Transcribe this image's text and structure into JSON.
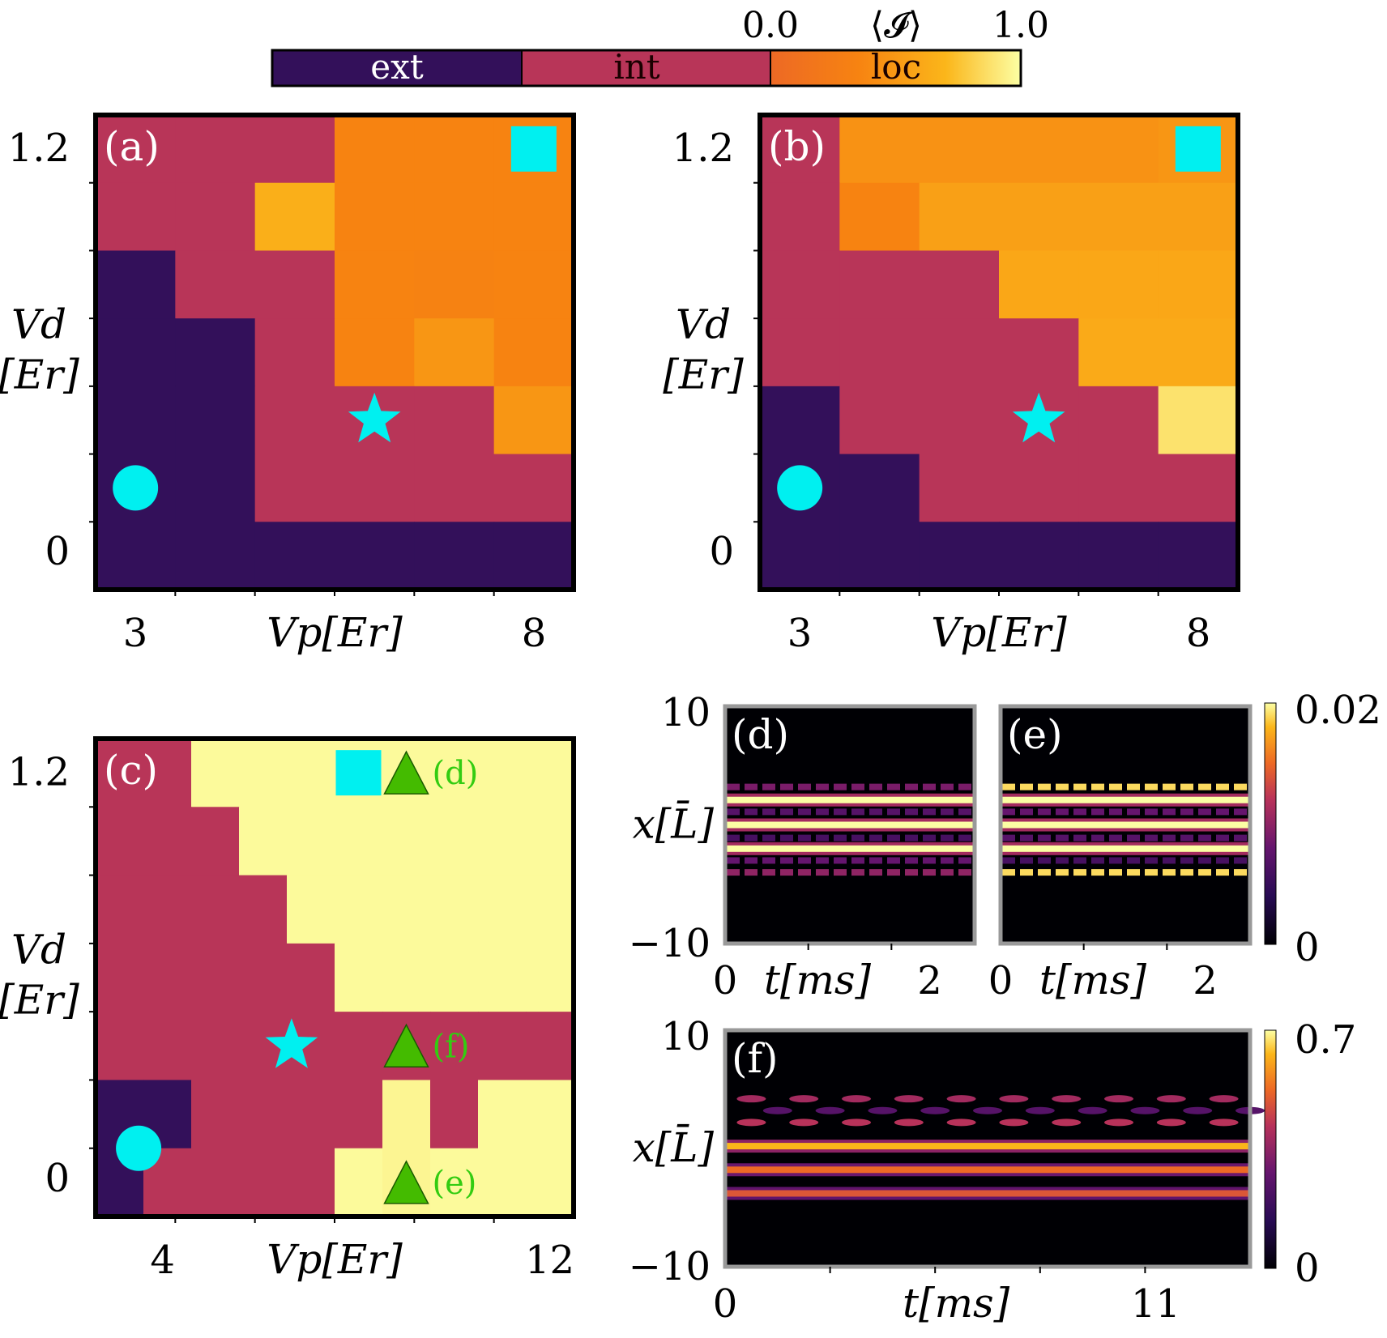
{
  "colorbar_top": {
    "segments": [
      {
        "label": "ext",
        "color": "#33105a",
        "text_color": "#ffffff"
      },
      {
        "label": "int",
        "color": "#b83558",
        "text_color": "#1a0000"
      },
      {
        "label": "loc",
        "color": "#f07f1f",
        "text_color": "#1a0000"
      }
    ],
    "loc_min_label": "0.0",
    "loc_max_label": "1.0",
    "quantity_label": "⟨𝓘⟩"
  },
  "chart_data": [
    {
      "id": "a",
      "type": "heatmap",
      "panel_label": "(a)",
      "xlabel": "V_p[E_r]",
      "ylabel": "V_d [E_r]",
      "xticks": [
        "3",
        "8"
      ],
      "yticks": [
        "0",
        "1.2"
      ],
      "rows_top_to_bottom": [
        [
          "int",
          "int",
          "int",
          "loc:0.35",
          "loc:0.35",
          "loc:0.35"
        ],
        [
          "int",
          "int",
          "loc:0.65",
          "loc:0.35",
          "loc:0.35",
          "loc:0.35"
        ],
        [
          "ext",
          "int",
          "int",
          "loc:0.35",
          "loc:0.33",
          "loc:0.35"
        ],
        [
          "ext",
          "ext",
          "int",
          "loc:0.35",
          "loc:0.48",
          "loc:0.35"
        ],
        [
          "ext",
          "ext",
          "int",
          "int",
          "int",
          "loc:0.48"
        ],
        [
          "ext",
          "ext",
          "int",
          "int",
          "int",
          "int"
        ],
        [
          "ext",
          "ext",
          "ext",
          "ext",
          "ext",
          "ext"
        ]
      ],
      "markers": [
        {
          "shape": "square",
          "col": 5,
          "row": 0
        },
        {
          "shape": "star",
          "col": 3,
          "row": 4
        },
        {
          "shape": "circle",
          "col": 0,
          "row": 5
        }
      ]
    },
    {
      "id": "b",
      "type": "heatmap",
      "panel_label": "(b)",
      "xlabel": "V_p[E_r]",
      "ylabel": "V_d [E_r]",
      "xticks": [
        "3",
        "8"
      ],
      "yticks": [
        "0",
        "1.2"
      ],
      "rows_top_to_bottom": [
        [
          "int",
          "loc:0.45",
          "loc:0.45",
          "loc:0.45",
          "loc:0.45",
          "loc:0.48"
        ],
        [
          "int",
          "loc:0.35",
          "loc:0.55",
          "loc:0.55",
          "loc:0.55",
          "loc:0.55"
        ],
        [
          "int",
          "int",
          "int",
          "loc:0.6",
          "loc:0.6",
          "loc:0.6"
        ],
        [
          "int",
          "int",
          "int",
          "int",
          "loc:0.62",
          "loc:0.62"
        ],
        [
          "ext",
          "int",
          "int",
          "int",
          "int",
          "loc:0.88"
        ],
        [
          "ext",
          "ext",
          "int",
          "int",
          "int",
          "int"
        ],
        [
          "ext",
          "ext",
          "ext",
          "ext",
          "ext",
          "ext"
        ]
      ],
      "markers": [
        {
          "shape": "square",
          "col": 5,
          "row": 0
        },
        {
          "shape": "star",
          "col": 3,
          "row": 4
        },
        {
          "shape": "circle",
          "col": 0,
          "row": 5
        }
      ]
    },
    {
      "id": "c",
      "type": "heatmap",
      "panel_label": "(c)",
      "xlabel": "V_p[E_r]",
      "ylabel": "V_d [E_r]",
      "xticks": [
        "4",
        "12"
      ],
      "yticks": [
        "0",
        "1.2"
      ],
      "rows_top_to_bottom": [
        [
          "int",
          "int",
          "loc:0.98",
          "loc:0.98",
          "loc:0.98",
          "loc:0.98",
          "loc:0.98",
          "loc:0.98",
          "loc:0.98",
          "loc:0.98"
        ],
        [
          "int",
          "int",
          "int",
          "loc:0.98",
          "loc:0.98",
          "loc:0.98",
          "loc:0.98",
          "loc:0.98",
          "loc:0.98",
          "loc:0.98"
        ],
        [
          "int",
          "int",
          "int",
          "int",
          "loc:0.98",
          "loc:0.98",
          "loc:0.98",
          "loc:0.98",
          "loc:0.98",
          "loc:0.98"
        ],
        [
          "int",
          "int",
          "int",
          "int",
          "int",
          "loc:0.98",
          "loc:0.98",
          "loc:0.98",
          "loc:0.98",
          "loc:0.98"
        ],
        [
          "int",
          "int",
          "int",
          "int",
          "int",
          "int",
          "int",
          "int",
          "int",
          "int"
        ],
        [
          "ext",
          "ext",
          "int",
          "int",
          "int",
          "int",
          "loc:0.96",
          "int",
          "loc:0.98",
          "loc:0.98"
        ],
        [
          "ext",
          "int",
          "int",
          "int",
          "int",
          "loc:0.98",
          "loc:0.96",
          "loc:0.98",
          "loc:0.98",
          "loc:0.98"
        ]
      ],
      "markers": [
        {
          "shape": "square",
          "col": 5,
          "row": 0
        },
        {
          "shape": "triangle",
          "col": 6,
          "row": 0,
          "annotation": "(d)"
        },
        {
          "shape": "star",
          "col": 3.6,
          "row": 4
        },
        {
          "shape": "triangle",
          "col": 6,
          "row": 4,
          "annotation": "(f)"
        },
        {
          "shape": "circle",
          "col": 0.4,
          "row": 5.5
        },
        {
          "shape": "triangle",
          "col": 6,
          "row": 6,
          "annotation": "(e)"
        }
      ]
    },
    {
      "id": "d",
      "type": "heatmap",
      "panel_label": "(d)",
      "xlabel": "t[ms]",
      "ylabel": "x[L̄]",
      "xticks": [
        "0",
        "2"
      ],
      "yticks": [
        "10",
        "−10"
      ],
      "bands": [
        {
          "position": 0.34,
          "intensity": 0.45,
          "pattern": "dashed"
        },
        {
          "position": 0.395,
          "intensity": 1.0,
          "pattern": "solid"
        },
        {
          "position": 0.445,
          "intensity": 0.35,
          "pattern": "dashed"
        },
        {
          "position": 0.5,
          "intensity": 1.0,
          "pattern": "solid"
        },
        {
          "position": 0.555,
          "intensity": 0.3,
          "pattern": "dashed"
        },
        {
          "position": 0.6,
          "intensity": 1.0,
          "pattern": "solid"
        },
        {
          "position": 0.65,
          "intensity": 0.4,
          "pattern": "dashed"
        },
        {
          "position": 0.7,
          "intensity": 0.5,
          "pattern": "dashed"
        }
      ]
    },
    {
      "id": "e",
      "type": "heatmap",
      "panel_label": "(e)",
      "xlabel": "t[ms]",
      "xticks": [
        "0",
        "2"
      ],
      "colorbar": {
        "min_label": "0",
        "max_label": "0.02"
      },
      "bands": [
        {
          "position": 0.34,
          "intensity": 0.95,
          "pattern": "dashed"
        },
        {
          "position": 0.395,
          "intensity": 1.0,
          "pattern": "solid"
        },
        {
          "position": 0.445,
          "intensity": 0.4,
          "pattern": "dashed"
        },
        {
          "position": 0.5,
          "intensity": 1.0,
          "pattern": "solid"
        },
        {
          "position": 0.555,
          "intensity": 0.35,
          "pattern": "dashed"
        },
        {
          "position": 0.6,
          "intensity": 1.0,
          "pattern": "solid"
        },
        {
          "position": 0.65,
          "intensity": 0.3,
          "pattern": "dashed"
        },
        {
          "position": 0.7,
          "intensity": 0.95,
          "pattern": "dashed"
        }
      ]
    },
    {
      "id": "f",
      "type": "heatmap",
      "panel_label": "(f)",
      "xlabel": "t[ms]",
      "ylabel": "x[L̄]",
      "xticks": [
        "0",
        "11"
      ],
      "yticks": [
        "10",
        "−10"
      ],
      "colorbar": {
        "min_label": "0",
        "max_label": "0.7"
      },
      "bands": [
        {
          "position": 0.29,
          "intensity": 0.55,
          "pattern": "blobs"
        },
        {
          "position": 0.34,
          "intensity": 0.35,
          "pattern": "blobs"
        },
        {
          "position": 0.39,
          "intensity": 0.6,
          "pattern": "blobs"
        },
        {
          "position": 0.49,
          "intensity": 0.9,
          "pattern": "solid"
        },
        {
          "position": 0.59,
          "intensity": 0.75,
          "pattern": "solid"
        },
        {
          "position": 0.69,
          "intensity": 0.7,
          "pattern": "solid"
        }
      ]
    }
  ]
}
